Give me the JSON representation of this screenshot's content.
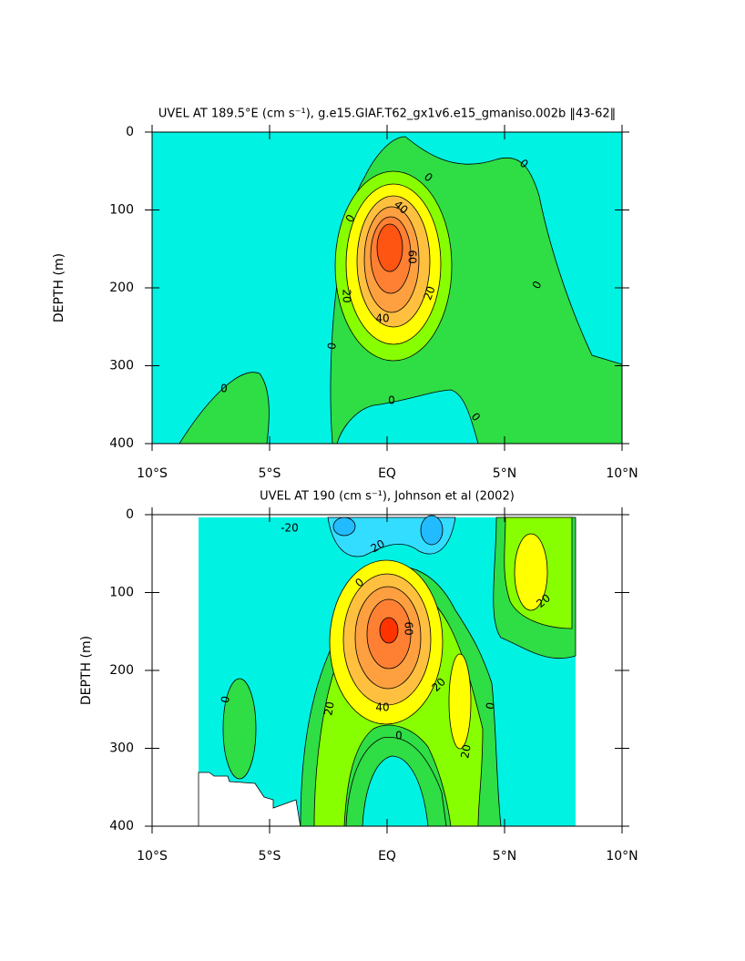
{
  "chart_data": [
    {
      "type": "contour",
      "title": "UVEL AT 189.5°E (cm s⁻¹), g.e15.GIAF.T62_gx1v6.e15_gmaniso.002b ‖43-62‖",
      "ylabel": "DEPTH (m)",
      "xlim": [
        -10,
        10
      ],
      "xticks": [
        {
          "value": -10,
          "label": "10°S"
        },
        {
          "value": -5,
          "label": "5°S"
        },
        {
          "value": 0,
          "label": "EQ"
        },
        {
          "value": 5,
          "label": "5°N"
        },
        {
          "value": 10,
          "label": "10°N"
        }
      ],
      "ylim": [
        400,
        0
      ],
      "yticks": [
        0,
        100,
        200,
        300,
        400
      ],
      "contour_labels": [
        0,
        0,
        0,
        0,
        0,
        0,
        0,
        0,
        20,
        20,
        40,
        40,
        60
      ]
    },
    {
      "type": "contour",
      "title": "UVEL AT 190 (cm s⁻¹), Johnson et al (2002)",
      "ylabel": "DEPTH (m)",
      "xlim": [
        -10,
        10
      ],
      "xticks": [
        {
          "value": -10,
          "label": "10°S"
        },
        {
          "value": -5,
          "label": "5°S"
        },
        {
          "value": 0,
          "label": "EQ"
        },
        {
          "value": 5,
          "label": "5°N"
        },
        {
          "value": 10,
          "label": "10°N"
        }
      ],
      "ylim": [
        400,
        0
      ],
      "yticks": [
        0,
        100,
        200,
        300,
        400
      ],
      "contour_labels": [
        -20,
        20,
        0,
        60,
        40,
        20,
        20,
        20,
        20,
        0,
        0,
        0
      ]
    }
  ]
}
